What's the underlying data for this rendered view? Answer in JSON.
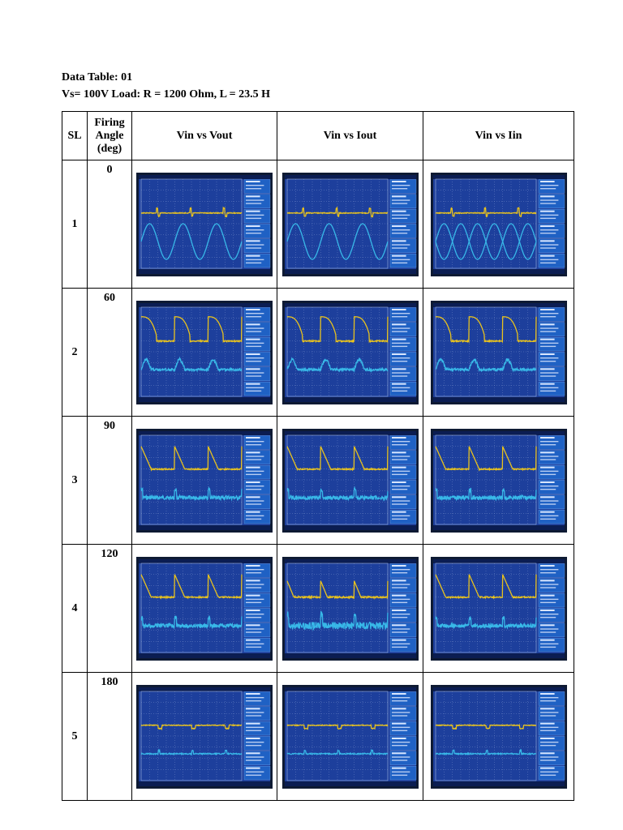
{
  "document": {
    "title": "Data Table: 01",
    "subtitle": "Vs= 100V Load: R = 1200 Ohm, L = 23.5 H"
  },
  "table": {
    "headers": {
      "sl": "SL",
      "angle": "Firing Angle (deg)",
      "col1": "Vin vs Vout",
      "col2": "Vin vs Iout",
      "col3": "Vin vs Iin"
    },
    "rows": [
      {
        "sl": "1",
        "angle": "0",
        "shapes": [
          "sine",
          "sine",
          "sine2"
        ]
      },
      {
        "sl": "2",
        "angle": "60",
        "shapes": [
          "pulse60",
          "pulse60",
          "pulse60"
        ]
      },
      {
        "sl": "3",
        "angle": "90",
        "shapes": [
          "saw",
          "saw",
          "saw"
        ]
      },
      {
        "sl": "4",
        "angle": "120",
        "shapes": [
          "saw",
          "noisy",
          "saw"
        ]
      },
      {
        "sl": "5",
        "angle": "180",
        "shapes": [
          "flat",
          "flat",
          "flat"
        ]
      }
    ]
  },
  "oscilloscope": {
    "screen_color": "#1d3f9c",
    "trace1_color": "#e8c21e",
    "trace2_color": "#38b8e8",
    "panel_color": "#1f61c4",
    "panel_labels": [
      "Measure",
      "Vpp",
      "Vavg",
      "Frequency",
      "Duty Cycle",
      "Rise Time"
    ]
  }
}
